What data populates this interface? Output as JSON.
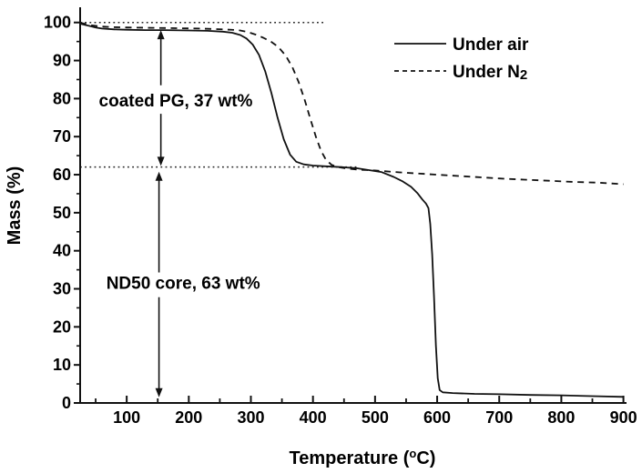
{
  "figure": {
    "background": "#ffffff",
    "line_color": "#111111",
    "text_color": "#000000"
  },
  "chart_data": {
    "type": "line",
    "title": "",
    "xlabel": {
      "prefix": "Temperature (",
      "sup": "o",
      "suffix": "C)"
    },
    "ylabel": "Mass (%)",
    "xlim": [
      25,
      905
    ],
    "ylim": [
      0,
      104
    ],
    "x_major_ticks": [
      100,
      200,
      300,
      400,
      500,
      600,
      700,
      800,
      900
    ],
    "x_minor_step": 50,
    "y_major_ticks": [
      0,
      10,
      20,
      30,
      40,
      50,
      60,
      70,
      80,
      90,
      100
    ],
    "y_minor_step": 5,
    "grid": false,
    "legend": {
      "position": "top-right-inside",
      "entries": [
        {
          "label_main": "Under air",
          "label_sub": "",
          "style": "solid"
        },
        {
          "label_main": "Under N",
          "label_sub": "2",
          "style": "dashed"
        }
      ]
    },
    "reference_lines": [
      {
        "y": 100,
        "x_start": 25,
        "x_end": 420,
        "style": "dotted"
      },
      {
        "y": 62,
        "x_start": 25,
        "x_end": 470,
        "style": "dotted"
      }
    ],
    "annotations": [
      {
        "text": "coated PG, 37 wt%",
        "at": {
          "x": 179,
          "y": 78
        }
      },
      {
        "text": "ND50 core, 63 wt%",
        "at": {
          "x": 191,
          "y": 30
        }
      }
    ],
    "arrows": [
      {
        "x": 155,
        "from": 98.0,
        "to": 62.3,
        "gap_top": 83.5,
        "gap_bottom": 76.0,
        "double_headed": true
      },
      {
        "x": 152,
        "from": 60.8,
        "to": 1.5,
        "gap_top": 34.3,
        "gap_bottom": 27.8,
        "double_headed": true
      }
    ],
    "series": [
      {
        "name": "Under air",
        "style": "solid",
        "points": [
          [
            25,
            99.7
          ],
          [
            32,
            99.4
          ],
          [
            40,
            99.1
          ],
          [
            50,
            98.7
          ],
          [
            60,
            98.4
          ],
          [
            80,
            98.2
          ],
          [
            100,
            98.1
          ],
          [
            130,
            98.0
          ],
          [
            160,
            98.0
          ],
          [
            200,
            97.9
          ],
          [
            230,
            97.8
          ],
          [
            255,
            97.6
          ],
          [
            270,
            97.3
          ],
          [
            283,
            96.7
          ],
          [
            293,
            95.8
          ],
          [
            303,
            94.2
          ],
          [
            313,
            91.5
          ],
          [
            323,
            87.2
          ],
          [
            333,
            81.5
          ],
          [
            343,
            75.0
          ],
          [
            353,
            69.3
          ],
          [
            363,
            65.3
          ],
          [
            373,
            63.4
          ],
          [
            385,
            62.7
          ],
          [
            400,
            62.4
          ],
          [
            420,
            62.2
          ],
          [
            445,
            62.0
          ],
          [
            470,
            61.7
          ],
          [
            490,
            61.2
          ],
          [
            510,
            60.7
          ],
          [
            530,
            59.4
          ],
          [
            545,
            58.2
          ],
          [
            558,
            56.8
          ],
          [
            568,
            55.2
          ],
          [
            576,
            53.5
          ],
          [
            582,
            52.4
          ],
          [
            586,
            51.2
          ],
          [
            589,
            47.0
          ],
          [
            592,
            39.0
          ],
          [
            595,
            28.0
          ],
          [
            598,
            15.0
          ],
          [
            601,
            6.5
          ],
          [
            604,
            3.4
          ],
          [
            609,
            2.8
          ],
          [
            625,
            2.6
          ],
          [
            660,
            2.4
          ],
          [
            700,
            2.3
          ],
          [
            750,
            2.1
          ],
          [
            800,
            2.0
          ],
          [
            850,
            1.8
          ],
          [
            900,
            1.6
          ]
        ]
      },
      {
        "name": "Under N2",
        "style": "dashed",
        "points": [
          [
            25,
            100.0
          ],
          [
            33,
            99.6
          ],
          [
            42,
            99.3
          ],
          [
            55,
            99.0
          ],
          [
            75,
            98.8
          ],
          [
            100,
            98.7
          ],
          [
            140,
            98.6
          ],
          [
            180,
            98.5
          ],
          [
            220,
            98.4
          ],
          [
            255,
            98.2
          ],
          [
            280,
            98.0
          ],
          [
            295,
            97.5
          ],
          [
            308,
            96.8
          ],
          [
            320,
            96.0
          ],
          [
            332,
            95.0
          ],
          [
            344,
            93.6
          ],
          [
            356,
            91.3
          ],
          [
            367,
            88.2
          ],
          [
            377,
            84.3
          ],
          [
            387,
            79.5
          ],
          [
            396,
            74.5
          ],
          [
            405,
            69.8
          ],
          [
            413,
            66.3
          ],
          [
            421,
            63.9
          ],
          [
            430,
            62.6
          ],
          [
            440,
            62.0
          ],
          [
            455,
            61.6
          ],
          [
            475,
            61.3
          ],
          [
            500,
            61.1
          ],
          [
            540,
            60.6
          ],
          [
            580,
            60.2
          ],
          [
            620,
            59.8
          ],
          [
            660,
            59.4
          ],
          [
            700,
            59.0
          ],
          [
            740,
            58.7
          ],
          [
            780,
            58.4
          ],
          [
            820,
            58.1
          ],
          [
            860,
            57.9
          ],
          [
            900,
            57.5
          ]
        ]
      }
    ]
  }
}
